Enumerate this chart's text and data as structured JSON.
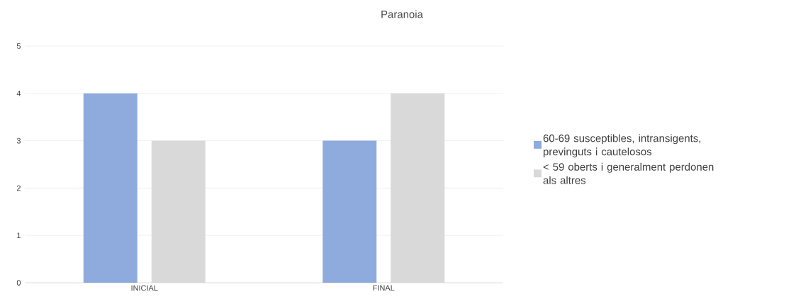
{
  "chart_data": {
    "type": "bar",
    "title": "Paranoia",
    "categories": [
      "INICIAL",
      "FINAL"
    ],
    "series": [
      {
        "name": "60-69 susceptibles, intransigents, previnguts i cautelosos",
        "color": "#8faadc",
        "values": [
          4,
          3
        ]
      },
      {
        "name": "< 59 oberts i generalment perdonen als altres",
        "color": "#d9d9d9",
        "values": [
          3,
          4
        ]
      }
    ],
    "ylim": [
      0,
      5
    ],
    "yticks": [
      0,
      1,
      2,
      3,
      4,
      5
    ],
    "grid": "y",
    "legend": "right"
  }
}
